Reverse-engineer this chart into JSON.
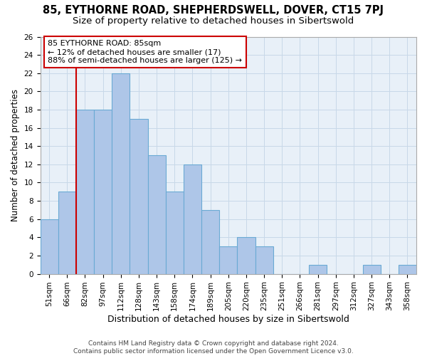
{
  "title1": "85, EYTHORNE ROAD, SHEPHERDSWELL, DOVER, CT15 7PJ",
  "title2": "Size of property relative to detached houses in Sibertswold",
  "xlabel": "Distribution of detached houses by size in Sibertswold",
  "ylabel": "Number of detached properties",
  "bar_labels": [
    "51sqm",
    "66sqm",
    "82sqm",
    "97sqm",
    "112sqm",
    "128sqm",
    "143sqm",
    "158sqm",
    "174sqm",
    "189sqm",
    "205sqm",
    "220sqm",
    "235sqm",
    "251sqm",
    "266sqm",
    "281sqm",
    "297sqm",
    "312sqm",
    "327sqm",
    "343sqm",
    "358sqm"
  ],
  "bar_values": [
    6,
    9,
    18,
    18,
    22,
    17,
    13,
    9,
    12,
    7,
    3,
    4,
    3,
    0,
    0,
    1,
    0,
    0,
    1,
    0,
    1
  ],
  "bar_color": "#aec6e8",
  "bar_edge_color": "#6aaad4",
  "vline_color": "#cc0000",
  "annotation_text": "85 EYTHORNE ROAD: 85sqm\n← 12% of detached houses are smaller (17)\n88% of semi-detached houses are larger (125) →",
  "annotation_box_color": "white",
  "annotation_box_edge_color": "#cc0000",
  "ylim": [
    0,
    26
  ],
  "yticks": [
    0,
    2,
    4,
    6,
    8,
    10,
    12,
    14,
    16,
    18,
    20,
    22,
    24,
    26
  ],
  "grid_color": "#c8d8e8",
  "background_color": "#e8f0f8",
  "footer1": "Contains HM Land Registry data © Crown copyright and database right 2024.",
  "footer2": "Contains public sector information licensed under the Open Government Licence v3.0.",
  "title1_fontsize": 10.5,
  "title2_fontsize": 9.5,
  "xlabel_fontsize": 9,
  "ylabel_fontsize": 8.5,
  "tick_fontsize": 7.5,
  "annotation_fontsize": 8,
  "footer_fontsize": 6.5
}
